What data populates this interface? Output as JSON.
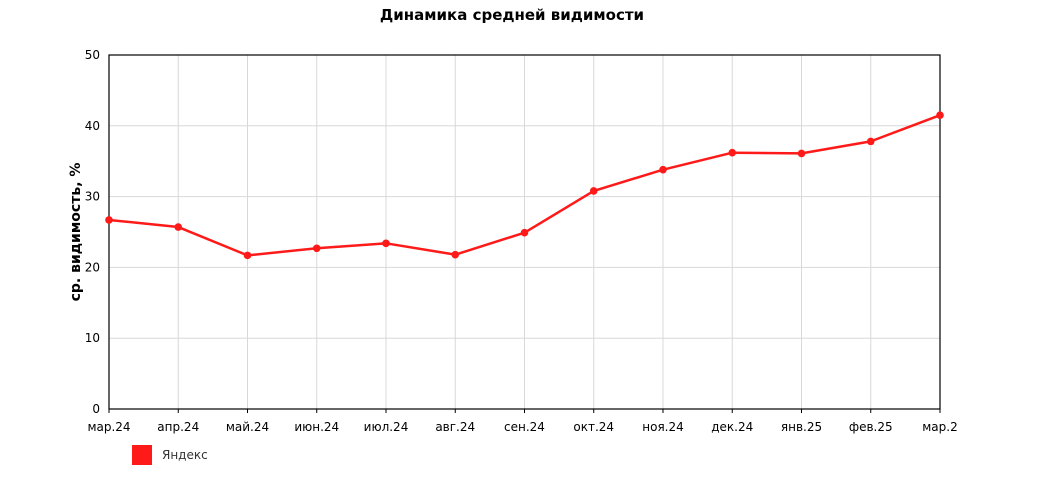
{
  "chart_data": {
    "type": "line",
    "title": "Динамика средней видимости",
    "xlabel": "",
    "ylabel": "ср. видимость, %",
    "categories": [
      "мар.24",
      "апр.24",
      "май.24",
      "июн.24",
      "июл.24",
      "авг.24",
      "сен.24",
      "окт.24",
      "ноя.24",
      "дек.24",
      "янв.25",
      "фев.25",
      "мар.2"
    ],
    "ylim": [
      0,
      50
    ],
    "yticks": [
      "0",
      "10",
      "20",
      "30",
      "40",
      "50"
    ],
    "series": [
      {
        "name": "Яндекс",
        "color": "#ff1a1a",
        "values": [
          26.7,
          25.7,
          21.7,
          22.7,
          23.4,
          21.8,
          24.9,
          30.8,
          33.8,
          36.2,
          36.1,
          37.8,
          41.5
        ]
      }
    ],
    "grid": true,
    "legend": "bottom-left"
  }
}
